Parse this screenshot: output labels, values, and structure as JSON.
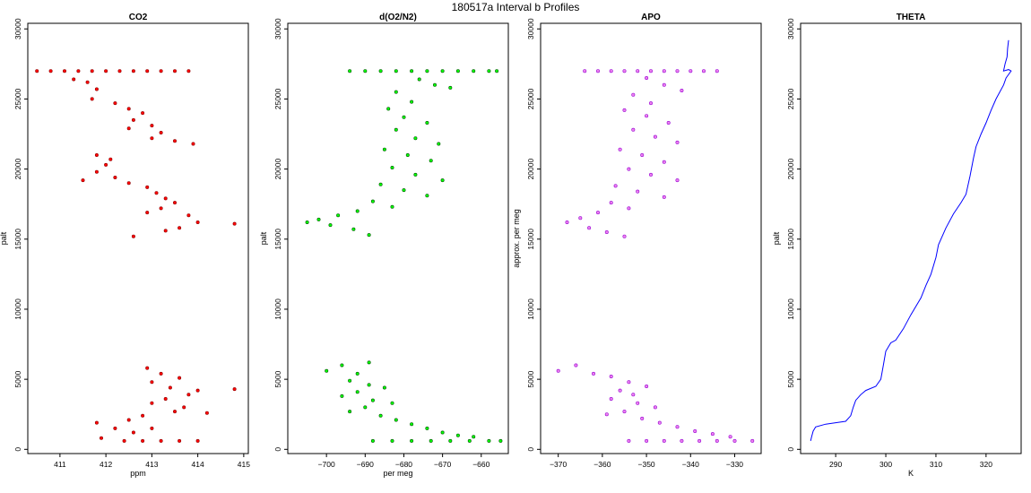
{
  "figure": {
    "title": "180517a   Interval b Profiles"
  },
  "chart_data": [
    {
      "type": "scatter",
      "title": "CO2",
      "xlabel": "ppm",
      "ylabel": "palt",
      "xlim": [
        410.3,
        415.1
      ],
      "ylim": [
        -300,
        30400
      ],
      "xticks": [
        411,
        412,
        413,
        414,
        415
      ],
      "yticks": [
        0,
        5000,
        10000,
        15000,
        20000,
        25000,
        30000
      ],
      "point_color": "#ff0000",
      "edge_color": "#8b0000",
      "series": [
        {
          "name": "",
          "points": [
            [
              410.5,
              27000
            ],
            [
              410.8,
              27000
            ],
            [
              411.1,
              27000
            ],
            [
              411.4,
              27000
            ],
            [
              411.7,
              27000
            ],
            [
              412.0,
              27000
            ],
            [
              412.3,
              27000
            ],
            [
              412.6,
              27000
            ],
            [
              412.9,
              27000
            ],
            [
              413.2,
              27000
            ],
            [
              413.5,
              27000
            ],
            [
              413.8,
              27000
            ],
            [
              411.3,
              26400
            ],
            [
              411.6,
              26200
            ],
            [
              411.8,
              25700
            ],
            [
              411.7,
              25000
            ],
            [
              412.2,
              24700
            ],
            [
              412.5,
              24300
            ],
            [
              412.8,
              24000
            ],
            [
              412.6,
              23500
            ],
            [
              413.0,
              23100
            ],
            [
              413.2,
              22600
            ],
            [
              413.0,
              22200
            ],
            [
              413.5,
              22000
            ],
            [
              413.9,
              21800
            ],
            [
              412.5,
              22900
            ],
            [
              411.8,
              21000
            ],
            [
              412.1,
              20700
            ],
            [
              412.0,
              20300
            ],
            [
              411.8,
              19800
            ],
            [
              412.2,
              19400
            ],
            [
              412.5,
              19000
            ],
            [
              412.9,
              18700
            ],
            [
              413.1,
              18300
            ],
            [
              413.3,
              17900
            ],
            [
              413.5,
              17600
            ],
            [
              413.2,
              17200
            ],
            [
              412.9,
              16900
            ],
            [
              413.8,
              16700
            ],
            [
              414.0,
              16200
            ],
            [
              413.6,
              15800
            ],
            [
              413.3,
              15600
            ],
            [
              412.6,
              15200
            ],
            [
              414.8,
              16100
            ],
            [
              411.5,
              19200
            ],
            [
              412.9,
              5800
            ],
            [
              413.2,
              5400
            ],
            [
              413.6,
              5100
            ],
            [
              413.0,
              4800
            ],
            [
              413.4,
              4400
            ],
            [
              414.0,
              4200
            ],
            [
              413.8,
              3900
            ],
            [
              413.3,
              3600
            ],
            [
              413.0,
              3300
            ],
            [
              413.7,
              3000
            ],
            [
              413.5,
              2700
            ],
            [
              412.8,
              2400
            ],
            [
              412.5,
              2100
            ],
            [
              414.2,
              2600
            ],
            [
              414.8,
              4300
            ],
            [
              412.2,
              1500
            ],
            [
              411.9,
              800
            ],
            [
              412.4,
              600
            ],
            [
              412.8,
              600
            ],
            [
              413.2,
              600
            ],
            [
              413.6,
              600
            ],
            [
              414.0,
              600
            ],
            [
              412.6,
              1200
            ],
            [
              413.0,
              1500
            ],
            [
              411.8,
              1900
            ]
          ]
        }
      ]
    },
    {
      "type": "scatter",
      "title": "d(O2/N2)",
      "xlabel": "per meg",
      "ylabel": "palt",
      "xlim": [
        -710,
        -653
      ],
      "ylim": [
        -300,
        30400
      ],
      "xticks": [
        -700,
        -690,
        -680,
        -670,
        -660
      ],
      "yticks": [
        0,
        5000,
        10000,
        15000,
        20000,
        25000,
        30000
      ],
      "point_color": "#00ff00",
      "edge_color": "#005000",
      "series": [
        {
          "name": "",
          "points": [
            [
              -694,
              27000
            ],
            [
              -690,
              27000
            ],
            [
              -686,
              27000
            ],
            [
              -682,
              27000
            ],
            [
              -678,
              27000
            ],
            [
              -674,
              27000
            ],
            [
              -670,
              27000
            ],
            [
              -666,
              27000
            ],
            [
              -662,
              27000
            ],
            [
              -658,
              27000
            ],
            [
              -656,
              27000
            ],
            [
              -676,
              26400
            ],
            [
              -672,
              26000
            ],
            [
              -668,
              25800
            ],
            [
              -682,
              25500
            ],
            [
              -678,
              24800
            ],
            [
              -684,
              24300
            ],
            [
              -680,
              23700
            ],
            [
              -674,
              23300
            ],
            [
              -682,
              22800
            ],
            [
              -677,
              22200
            ],
            [
              -671,
              21800
            ],
            [
              -685,
              21400
            ],
            [
              -679,
              21000
            ],
            [
              -673,
              20600
            ],
            [
              -683,
              20100
            ],
            [
              -677,
              19600
            ],
            [
              -670,
              19200
            ],
            [
              -686,
              18900
            ],
            [
              -680,
              18500
            ],
            [
              -674,
              18100
            ],
            [
              -688,
              17700
            ],
            [
              -683,
              17300
            ],
            [
              -692,
              17000
            ],
            [
              -697,
              16700
            ],
            [
              -702,
              16400
            ],
            [
              -699,
              16000
            ],
            [
              -693,
              15700
            ],
            [
              -689,
              15300
            ],
            [
              -705,
              16200
            ],
            [
              -696,
              6000
            ],
            [
              -700,
              5600
            ],
            [
              -692,
              5400
            ],
            [
              -689,
              6200
            ],
            [
              -694,
              4900
            ],
            [
              -689,
              4600
            ],
            [
              -685,
              4400
            ],
            [
              -692,
              4100
            ],
            [
              -696,
              3800
            ],
            [
              -688,
              3500
            ],
            [
              -683,
              3300
            ],
            [
              -690,
              3000
            ],
            [
              -694,
              2700
            ],
            [
              -686,
              2400
            ],
            [
              -682,
              2100
            ],
            [
              -678,
              1800
            ],
            [
              -674,
              1500
            ],
            [
              -670,
              1200
            ],
            [
              -666,
              1000
            ],
            [
              -662,
              900
            ],
            [
              -688,
              600
            ],
            [
              -683,
              600
            ],
            [
              -678,
              600
            ],
            [
              -673,
              600
            ],
            [
              -668,
              600
            ],
            [
              -663,
              600
            ],
            [
              -658,
              600
            ],
            [
              -655,
              600
            ]
          ]
        }
      ]
    },
    {
      "type": "scatter",
      "title": "APO",
      "xlabel": "",
      "ylabel": "approx. per meg",
      "xlim": [
        -374,
        -324
      ],
      "ylim": [
        -300,
        30400
      ],
      "xticks": [
        -370,
        -360,
        -350,
        -340,
        -330
      ],
      "yticks": [
        0,
        5000,
        10000,
        15000,
        20000,
        25000,
        30000
      ],
      "point_color": "#ee82ee",
      "edge_color": "#9400d3",
      "series": [
        {
          "name": "",
          "points": [
            [
              -364,
              27000
            ],
            [
              -361,
              27000
            ],
            [
              -358,
              27000
            ],
            [
              -355,
              27000
            ],
            [
              -352,
              27000
            ],
            [
              -349,
              27000
            ],
            [
              -346,
              27000
            ],
            [
              -343,
              27000
            ],
            [
              -340,
              27000
            ],
            [
              -337,
              27000
            ],
            [
              -334,
              27000
            ],
            [
              -350,
              26500
            ],
            [
              -346,
              26000
            ],
            [
              -342,
              25600
            ],
            [
              -353,
              25300
            ],
            [
              -349,
              24700
            ],
            [
              -355,
              24200
            ],
            [
              -350,
              23800
            ],
            [
              -345,
              23300
            ],
            [
              -353,
              22800
            ],
            [
              -348,
              22300
            ],
            [
              -343,
              21900
            ],
            [
              -356,
              21400
            ],
            [
              -351,
              21000
            ],
            [
              -346,
              20500
            ],
            [
              -354,
              20000
            ],
            [
              -349,
              19600
            ],
            [
              -343,
              19200
            ],
            [
              -357,
              18800
            ],
            [
              -352,
              18400
            ],
            [
              -346,
              18000
            ],
            [
              -358,
              17600
            ],
            [
              -354,
              17200
            ],
            [
              -361,
              16900
            ],
            [
              -365,
              16500
            ],
            [
              -368,
              16200
            ],
            [
              -363,
              15800
            ],
            [
              -359,
              15500
            ],
            [
              -355,
              15200
            ],
            [
              -366,
              6000
            ],
            [
              -370,
              5600
            ],
            [
              -362,
              5400
            ],
            [
              -358,
              5200
            ],
            [
              -354,
              4800
            ],
            [
              -350,
              4500
            ],
            [
              -356,
              4200
            ],
            [
              -353,
              3900
            ],
            [
              -358,
              3600
            ],
            [
              -352,
              3300
            ],
            [
              -348,
              3000
            ],
            [
              -355,
              2700
            ],
            [
              -359,
              2500
            ],
            [
              -351,
              2200
            ],
            [
              -347,
              1900
            ],
            [
              -343,
              1600
            ],
            [
              -339,
              1300
            ],
            [
              -335,
              1100
            ],
            [
              -331,
              900
            ],
            [
              -354,
              600
            ],
            [
              -350,
              600
            ],
            [
              -346,
              600
            ],
            [
              -342,
              600
            ],
            [
              -338,
              600
            ],
            [
              -334,
              600
            ],
            [
              -330,
              600
            ],
            [
              -326,
              600
            ]
          ]
        }
      ]
    },
    {
      "type": "line",
      "title": "THETA",
      "xlabel": "K",
      "ylabel": "palt",
      "xlim": [
        283,
        327
      ],
      "ylim": [
        -300,
        30400
      ],
      "xticks": [
        290,
        300,
        310,
        320
      ],
      "yticks": [
        0,
        5000,
        10000,
        15000,
        20000,
        25000,
        30000
      ],
      "line_color": "#0000ff",
      "series": [
        {
          "name": "",
          "points": [
            [
              285.0,
              600
            ],
            [
              285.2,
              900
            ],
            [
              285.5,
              1300
            ],
            [
              286.0,
              1600
            ],
            [
              288.0,
              1800
            ],
            [
              290.0,
              1900
            ],
            [
              292.0,
              2000
            ],
            [
              293.0,
              2400
            ],
            [
              293.5,
              3000
            ],
            [
              294.0,
              3500
            ],
            [
              295.0,
              3900
            ],
            [
              296.0,
              4200
            ],
            [
              298.0,
              4500
            ],
            [
              299.0,
              5000
            ],
            [
              299.5,
              6000
            ],
            [
              300.0,
              7000
            ],
            [
              301.0,
              7600
            ],
            [
              302.0,
              7800
            ],
            [
              303.5,
              8600
            ],
            [
              305.0,
              9600
            ],
            [
              307.0,
              10800
            ],
            [
              308.0,
              11700
            ],
            [
              309.0,
              12500
            ],
            [
              310.0,
              13700
            ],
            [
              310.5,
              14600
            ],
            [
              312.0,
              15800
            ],
            [
              313.5,
              16800
            ],
            [
              315.0,
              17600
            ],
            [
              316.0,
              18200
            ],
            [
              316.8,
              19500
            ],
            [
              317.5,
              20800
            ],
            [
              318.0,
              21600
            ],
            [
              319.0,
              22500
            ],
            [
              320.0,
              23300
            ],
            [
              321.0,
              24200
            ],
            [
              322.0,
              25000
            ],
            [
              323.5,
              26000
            ],
            [
              324.0,
              26500
            ],
            [
              325.0,
              27000
            ],
            [
              324.5,
              27100
            ],
            [
              323.5,
              27000
            ],
            [
              323.8,
              27500
            ],
            [
              324.2,
              28000
            ],
            [
              324.3,
              28600
            ],
            [
              324.5,
              29200
            ]
          ]
        }
      ]
    }
  ]
}
